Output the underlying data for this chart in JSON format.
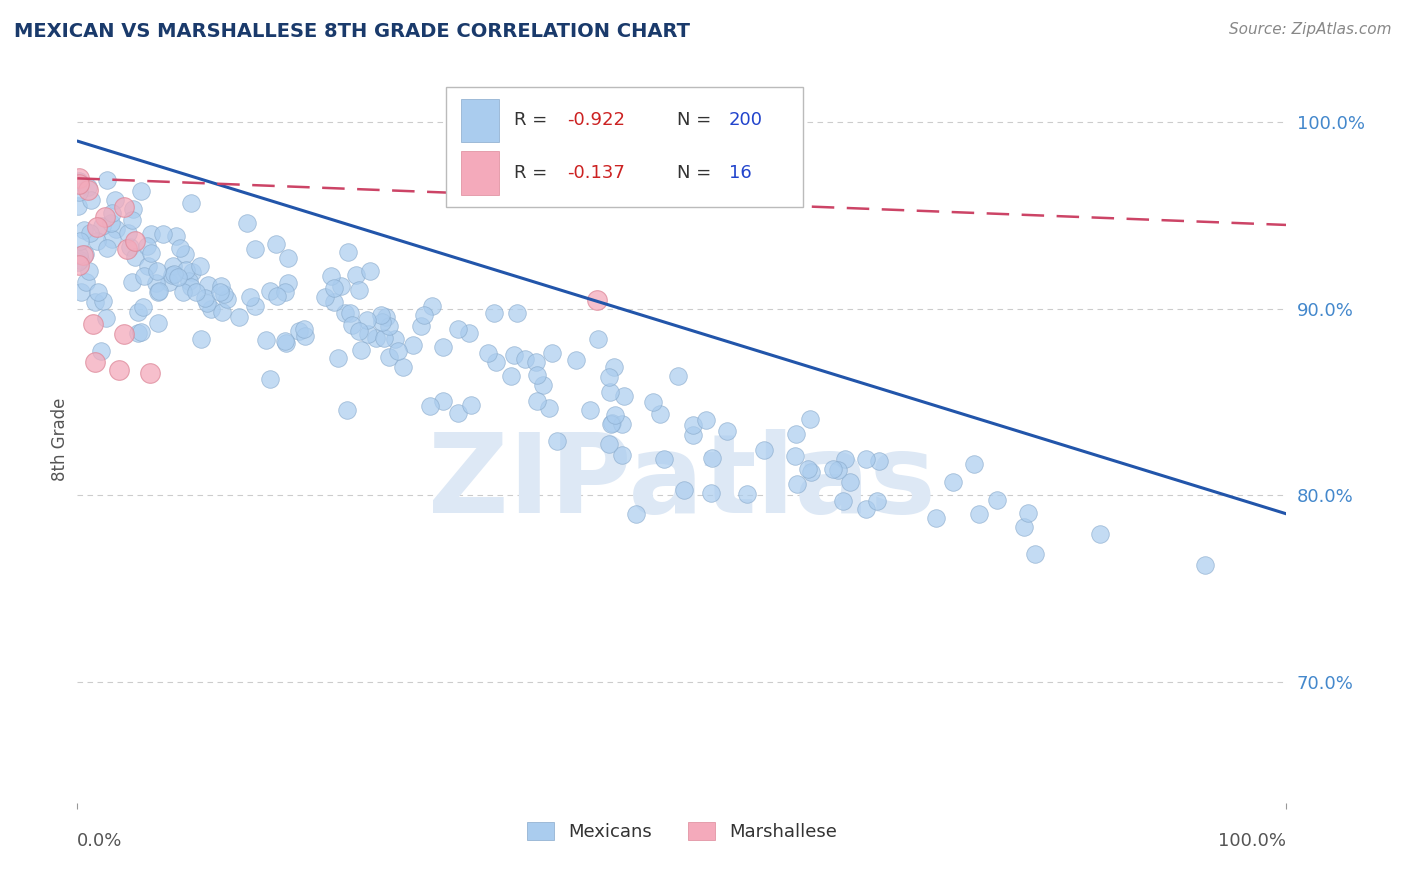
{
  "title": "MEXICAN VS MARSHALLESE 8TH GRADE CORRELATION CHART",
  "source_text": "Source: ZipAtlas.com",
  "ylabel": "8th Grade",
  "xlim": [
    0.0,
    1.0
  ],
  "ylim": [
    0.635,
    1.025
  ],
  "yticks": [
    0.7,
    0.8,
    0.9,
    1.0
  ],
  "ytick_labels": [
    "70.0%",
    "80.0%",
    "90.0%",
    "100.0%"
  ],
  "blue_R": -0.922,
  "blue_N": 200,
  "pink_R": -0.137,
  "pink_N": 16,
  "blue_color": "#aaccee",
  "blue_edge_color": "#88aacc",
  "pink_color": "#f4aabb",
  "pink_edge_color": "#dd8899",
  "blue_line_color": "#2255aa",
  "pink_line_color": "#cc4466",
  "title_color": "#1a3a6b",
  "source_color": "#888888",
  "legend_R_color": "#cc2222",
  "legend_N_color": "#2244cc",
  "legend_label_color": "#333333",
  "watermark_color": "#dde8f5",
  "watermark_text": "ZIPatlas",
  "background_color": "#ffffff",
  "seed": 42,
  "blue_line_x": [
    0.0,
    1.0
  ],
  "blue_line_y": [
    0.99,
    0.79
  ],
  "pink_line_x": [
    0.0,
    1.0
  ],
  "pink_line_y": [
    0.97,
    0.945
  ],
  "grid_color": "#cccccc",
  "tick_color": "#4488cc",
  "axis_label_color": "#555555"
}
